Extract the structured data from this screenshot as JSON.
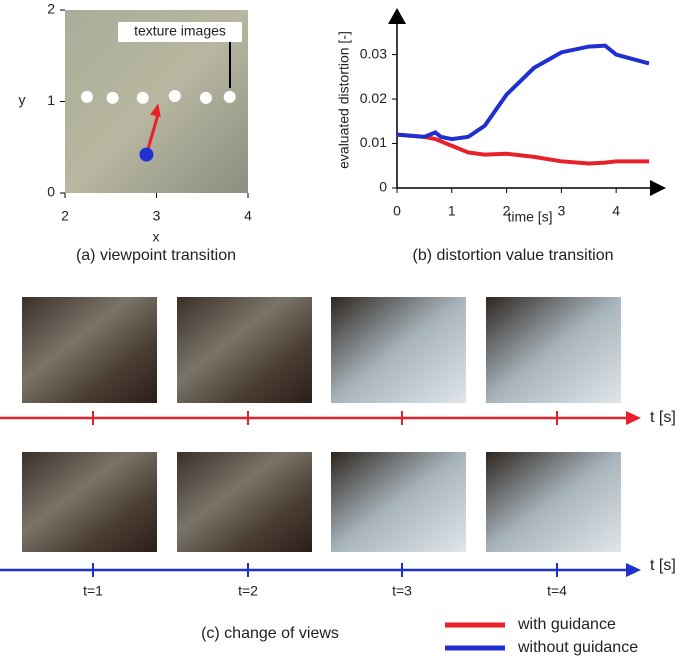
{
  "chart_data": [
    {
      "type": "scatter",
      "xlabel": "x",
      "ylabel": "y",
      "caption": "(a) viewpoint transition",
      "annotation": "texture images",
      "xlim": [
        2,
        4
      ],
      "ylim": [
        0,
        2
      ],
      "xticks": [
        2,
        3,
        4
      ],
      "yticks": [
        0,
        1,
        2
      ],
      "points": {
        "x": [
          2.24,
          2.52,
          2.85,
          3.2,
          3.54,
          3.8
        ],
        "y": [
          1.05,
          1.04,
          1.04,
          1.06,
          1.04,
          1.05
        ],
        "color": "#ffffff"
      },
      "start": {
        "x": 2.89,
        "y": 0.42,
        "color": "#1f2fd0"
      },
      "arrow_end": {
        "x": 3.02,
        "y": 0.98,
        "color": "#e8202a"
      }
    },
    {
      "type": "line",
      "xlabel": "time [s]",
      "ylabel": "evaluated distortion [-]",
      "caption": "(b) distortion value transition",
      "xlim": [
        0,
        4.8
      ],
      "ylim": [
        0,
        0.038
      ],
      "xticks": [
        0,
        1,
        2,
        3,
        4
      ],
      "yticks": [
        0,
        0.01,
        0.02,
        0.03
      ],
      "x": [
        0,
        0.5,
        0.7,
        0.8,
        1,
        1.3,
        1.6,
        2,
        2.5,
        3,
        3.5,
        3.8,
        4,
        4.3,
        4.6
      ],
      "series": [
        {
          "name": "with guidance",
          "color": "#e8202a",
          "values": [
            0.012,
            0.0115,
            0.011,
            0.0105,
            0.0095,
            0.008,
            0.0075,
            0.0077,
            0.007,
            0.006,
            0.0055,
            0.0057,
            0.006,
            0.006,
            0.006
          ]
        },
        {
          "name": "without guidance",
          "color": "#1f2fd0",
          "values": [
            0.012,
            0.0115,
            0.0125,
            0.0115,
            0.011,
            0.0115,
            0.014,
            0.021,
            0.027,
            0.0305,
            0.0318,
            0.032,
            0.03,
            0.029,
            0.028
          ]
        }
      ]
    }
  ],
  "timeline": {
    "caption": "(c) change of views",
    "axis_label": "t [s]",
    "ticks": [
      "t=1",
      "t=2",
      "t=3",
      "t=4"
    ]
  }
}
